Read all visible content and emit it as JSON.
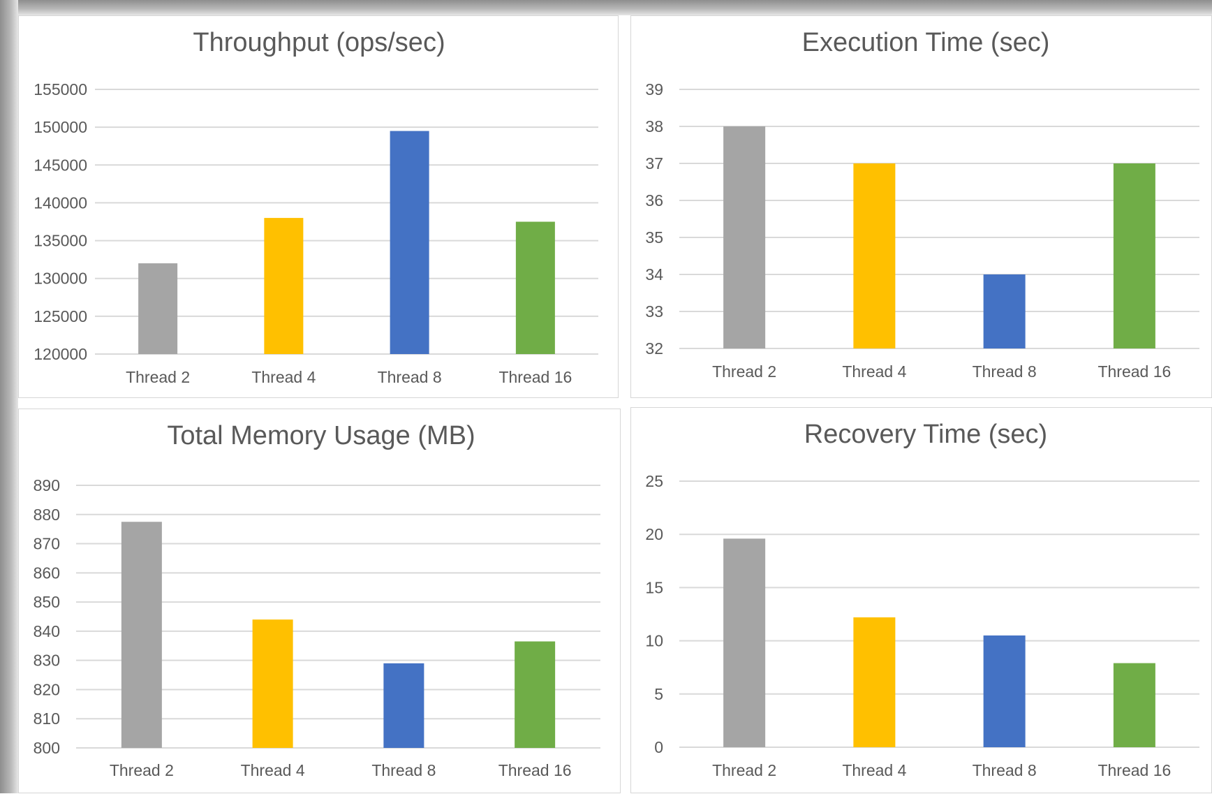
{
  "chart_data": [
    {
      "type": "bar",
      "title": "Throughput (ops/sec)",
      "categories": [
        "Thread 2",
        "Thread 4",
        "Thread 8",
        "Thread 16"
      ],
      "values": [
        132000,
        138000,
        149500,
        137500
      ],
      "colors": [
        "#a5a5a5",
        "#ffc000",
        "#4472c4",
        "#70ad47"
      ],
      "ylim": [
        120000,
        155000
      ],
      "yticks": [
        "120000",
        "125000",
        "130000",
        "135000",
        "140000",
        "145000",
        "150000",
        "155000"
      ],
      "xlabel": "",
      "ylabel": "",
      "grid": true,
      "legend": "none"
    },
    {
      "type": "bar",
      "title": "Execution Time (sec)",
      "categories": [
        "Thread 2",
        "Thread 4",
        "Thread 8",
        "Thread 16"
      ],
      "values": [
        38,
        37,
        34,
        37
      ],
      "colors": [
        "#a5a5a5",
        "#ffc000",
        "#4472c4",
        "#70ad47"
      ],
      "ylim": [
        32,
        39
      ],
      "yticks": [
        "32",
        "33",
        "34",
        "35",
        "36",
        "37",
        "38",
        "39"
      ],
      "xlabel": "",
      "ylabel": "",
      "grid": true,
      "legend": "none"
    },
    {
      "type": "bar",
      "title": "Total Memory Usage (MB)",
      "categories": [
        "Thread 2",
        "Thread 4",
        "Thread 8",
        "Thread 16"
      ],
      "values": [
        877.5,
        844,
        829,
        836.5
      ],
      "colors": [
        "#a5a5a5",
        "#ffc000",
        "#4472c4",
        "#70ad47"
      ],
      "ylim": [
        800,
        890
      ],
      "yticks": [
        "800",
        "810",
        "820",
        "830",
        "840",
        "850",
        "860",
        "870",
        "880",
        "890"
      ],
      "xlabel": "",
      "ylabel": "",
      "grid": true,
      "legend": "none"
    },
    {
      "type": "bar",
      "title": "Recovery Time (sec)",
      "categories": [
        "Thread 2",
        "Thread 4",
        "Thread 8",
        "Thread 16"
      ],
      "values": [
        19.6,
        12.2,
        10.5,
        7.9
      ],
      "colors": [
        "#a5a5a5",
        "#ffc000",
        "#4472c4",
        "#70ad47"
      ],
      "ylim": [
        0,
        25
      ],
      "yticks": [
        "0",
        "5",
        "10",
        "15",
        "20",
        "25"
      ],
      "xlabel": "",
      "ylabel": "",
      "grid": true,
      "legend": "none"
    }
  ]
}
